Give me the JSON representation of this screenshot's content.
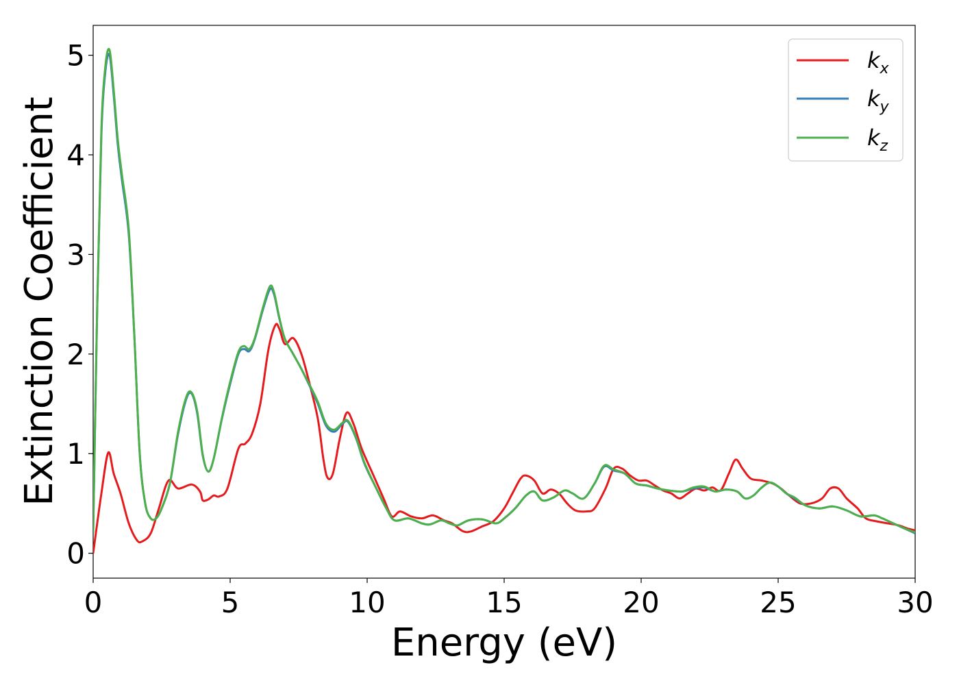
{
  "chart_data": {
    "type": "line",
    "xlabel": "Energy (eV)",
    "ylabel": "Extinction Coefficient",
    "xlim": [
      0,
      30
    ],
    "ylim": [
      -0.25,
      5.3
    ],
    "xticks": [
      0,
      5,
      10,
      15,
      20,
      25,
      30
    ],
    "yticks": [
      0,
      1,
      2,
      3,
      4,
      5
    ],
    "grid": false,
    "legend_position": "top-right",
    "series": [
      {
        "name": "k_x",
        "label_main": "k",
        "label_sub": "x",
        "color": "#e41a1c",
        "points": [
          [
            0,
            0
          ],
          [
            0.3,
            0.6
          ],
          [
            0.55,
            1.01
          ],
          [
            0.75,
            0.8
          ],
          [
            1.0,
            0.6
          ],
          [
            1.3,
            0.3
          ],
          [
            1.6,
            0.13
          ],
          [
            1.8,
            0.12
          ],
          [
            2.1,
            0.2
          ],
          [
            2.4,
            0.45
          ],
          [
            2.75,
            0.73
          ],
          [
            3.1,
            0.65
          ],
          [
            3.6,
            0.69
          ],
          [
            3.9,
            0.62
          ],
          [
            4.0,
            0.53
          ],
          [
            4.2,
            0.54
          ],
          [
            4.4,
            0.58
          ],
          [
            4.6,
            0.57
          ],
          [
            4.9,
            0.65
          ],
          [
            5.3,
            1.05
          ],
          [
            5.55,
            1.1
          ],
          [
            5.8,
            1.2
          ],
          [
            6.1,
            1.5
          ],
          [
            6.4,
            2.05
          ],
          [
            6.65,
            2.29
          ],
          [
            6.8,
            2.25
          ],
          [
            7.0,
            2.1
          ],
          [
            7.3,
            2.16
          ],
          [
            7.6,
            2.0
          ],
          [
            7.9,
            1.7
          ],
          [
            8.2,
            1.35
          ],
          [
            8.4,
            0.95
          ],
          [
            8.55,
            0.76
          ],
          [
            8.75,
            0.8
          ],
          [
            9.0,
            1.15
          ],
          [
            9.25,
            1.41
          ],
          [
            9.5,
            1.3
          ],
          [
            9.8,
            1.05
          ],
          [
            10.2,
            0.8
          ],
          [
            10.6,
            0.55
          ],
          [
            10.9,
            0.37
          ],
          [
            11.2,
            0.42
          ],
          [
            11.6,
            0.37
          ],
          [
            12.0,
            0.35
          ],
          [
            12.4,
            0.38
          ],
          [
            12.8,
            0.33
          ],
          [
            13.1,
            0.3
          ],
          [
            13.5,
            0.22
          ],
          [
            13.8,
            0.22
          ],
          [
            14.2,
            0.27
          ],
          [
            14.6,
            0.32
          ],
          [
            15.0,
            0.45
          ],
          [
            15.3,
            0.6
          ],
          [
            15.6,
            0.75
          ],
          [
            15.8,
            0.78
          ],
          [
            16.1,
            0.73
          ],
          [
            16.4,
            0.6
          ],
          [
            16.7,
            0.64
          ],
          [
            17.0,
            0.6
          ],
          [
            17.3,
            0.5
          ],
          [
            17.6,
            0.43
          ],
          [
            18.0,
            0.42
          ],
          [
            18.3,
            0.45
          ],
          [
            18.7,
            0.65
          ],
          [
            19.0,
            0.85
          ],
          [
            19.3,
            0.85
          ],
          [
            19.6,
            0.78
          ],
          [
            19.9,
            0.73
          ],
          [
            20.2,
            0.73
          ],
          [
            20.5,
            0.68
          ],
          [
            20.8,
            0.63
          ],
          [
            21.1,
            0.6
          ],
          [
            21.4,
            0.55
          ],
          [
            21.7,
            0.6
          ],
          [
            22.0,
            0.65
          ],
          [
            22.3,
            0.63
          ],
          [
            22.6,
            0.66
          ],
          [
            22.9,
            0.63
          ],
          [
            23.2,
            0.8
          ],
          [
            23.45,
            0.94
          ],
          [
            23.7,
            0.85
          ],
          [
            24.0,
            0.75
          ],
          [
            24.4,
            0.73
          ],
          [
            24.8,
            0.7
          ],
          [
            25.1,
            0.65
          ],
          [
            25.4,
            0.58
          ],
          [
            25.8,
            0.5
          ],
          [
            26.2,
            0.5
          ],
          [
            26.6,
            0.55
          ],
          [
            26.9,
            0.65
          ],
          [
            27.2,
            0.65
          ],
          [
            27.5,
            0.55
          ],
          [
            27.9,
            0.45
          ],
          [
            28.2,
            0.35
          ],
          [
            28.6,
            0.32
          ],
          [
            29.0,
            0.3
          ],
          [
            29.4,
            0.28
          ],
          [
            29.7,
            0.25
          ],
          [
            30.0,
            0.23
          ]
        ]
      },
      {
        "name": "k_y",
        "label_main": "k",
        "label_sub": "y",
        "color": "#377eb8",
        "points": [
          [
            0,
            0.2
          ],
          [
            0.15,
            2.5
          ],
          [
            0.3,
            4.2
          ],
          [
            0.45,
            4.85
          ],
          [
            0.6,
            5.0
          ],
          [
            0.75,
            4.6
          ],
          [
            0.9,
            4.1
          ],
          [
            1.05,
            3.75
          ],
          [
            1.3,
            3.2
          ],
          [
            1.5,
            2.2
          ],
          [
            1.7,
            1.0
          ],
          [
            1.9,
            0.5
          ],
          [
            2.1,
            0.35
          ],
          [
            2.3,
            0.35
          ],
          [
            2.5,
            0.45
          ],
          [
            2.8,
            0.7
          ],
          [
            3.1,
            1.2
          ],
          [
            3.4,
            1.55
          ],
          [
            3.6,
            1.6
          ],
          [
            3.8,
            1.4
          ],
          [
            4.0,
            0.98
          ],
          [
            4.2,
            0.82
          ],
          [
            4.4,
            0.95
          ],
          [
            4.7,
            1.35
          ],
          [
            5.0,
            1.7
          ],
          [
            5.3,
            2.0
          ],
          [
            5.5,
            2.05
          ],
          [
            5.7,
            2.03
          ],
          [
            5.9,
            2.15
          ],
          [
            6.2,
            2.45
          ],
          [
            6.45,
            2.65
          ],
          [
            6.6,
            2.6
          ],
          [
            6.8,
            2.35
          ],
          [
            7.0,
            2.15
          ],
          [
            7.3,
            2.0
          ],
          [
            7.6,
            1.85
          ],
          [
            7.9,
            1.68
          ],
          [
            8.2,
            1.5
          ],
          [
            8.5,
            1.28
          ],
          [
            8.8,
            1.22
          ],
          [
            9.1,
            1.3
          ],
          [
            9.3,
            1.32
          ],
          [
            9.6,
            1.15
          ],
          [
            9.9,
            0.9
          ],
          [
            10.3,
            0.67
          ],
          [
            10.7,
            0.45
          ],
          [
            11.0,
            0.33
          ],
          [
            11.5,
            0.35
          ],
          [
            12.0,
            0.3
          ],
          [
            12.3,
            0.29
          ],
          [
            12.7,
            0.33
          ],
          [
            13.0,
            0.3
          ],
          [
            13.3,
            0.28
          ],
          [
            13.7,
            0.33
          ],
          [
            14.2,
            0.34
          ],
          [
            14.7,
            0.3
          ],
          [
            15.0,
            0.35
          ],
          [
            15.4,
            0.45
          ],
          [
            15.8,
            0.58
          ],
          [
            16.1,
            0.62
          ],
          [
            16.4,
            0.53
          ],
          [
            16.8,
            0.56
          ],
          [
            17.2,
            0.63
          ],
          [
            17.5,
            0.6
          ],
          [
            17.9,
            0.55
          ],
          [
            18.3,
            0.7
          ],
          [
            18.65,
            0.87
          ],
          [
            19.0,
            0.83
          ],
          [
            19.4,
            0.8
          ],
          [
            19.8,
            0.7
          ],
          [
            20.2,
            0.68
          ],
          [
            20.6,
            0.65
          ],
          [
            21.0,
            0.63
          ],
          [
            21.5,
            0.62
          ],
          [
            21.9,
            0.65
          ],
          [
            22.3,
            0.66
          ],
          [
            22.7,
            0.62
          ],
          [
            23.1,
            0.64
          ],
          [
            23.5,
            0.62
          ],
          [
            23.8,
            0.55
          ],
          [
            24.1,
            0.58
          ],
          [
            24.4,
            0.66
          ],
          [
            24.7,
            0.71
          ],
          [
            25.0,
            0.67
          ],
          [
            25.3,
            0.6
          ],
          [
            25.6,
            0.55
          ],
          [
            26.0,
            0.48
          ],
          [
            26.5,
            0.45
          ],
          [
            27.0,
            0.47
          ],
          [
            27.5,
            0.43
          ],
          [
            28.0,
            0.37
          ],
          [
            28.5,
            0.38
          ],
          [
            28.8,
            0.35
          ],
          [
            29.2,
            0.3
          ],
          [
            29.6,
            0.25
          ],
          [
            30.0,
            0.2
          ]
        ]
      },
      {
        "name": "k_z",
        "label_main": "k",
        "label_sub": "z",
        "color": "#4daf4a",
        "points": [
          [
            0,
            0.2
          ],
          [
            0.15,
            2.5
          ],
          [
            0.3,
            4.25
          ],
          [
            0.45,
            4.9
          ],
          [
            0.6,
            5.05
          ],
          [
            0.75,
            4.65
          ],
          [
            0.9,
            4.15
          ],
          [
            1.05,
            3.8
          ],
          [
            1.3,
            3.25
          ],
          [
            1.5,
            2.2
          ],
          [
            1.7,
            1.0
          ],
          [
            1.9,
            0.5
          ],
          [
            2.1,
            0.35
          ],
          [
            2.3,
            0.35
          ],
          [
            2.5,
            0.45
          ],
          [
            2.8,
            0.7
          ],
          [
            3.1,
            1.22
          ],
          [
            3.4,
            1.57
          ],
          [
            3.6,
            1.61
          ],
          [
            3.8,
            1.42
          ],
          [
            4.0,
            0.99
          ],
          [
            4.2,
            0.82
          ],
          [
            4.4,
            0.95
          ],
          [
            4.7,
            1.36
          ],
          [
            5.0,
            1.72
          ],
          [
            5.3,
            2.02
          ],
          [
            5.5,
            2.08
          ],
          [
            5.7,
            2.05
          ],
          [
            5.9,
            2.16
          ],
          [
            6.2,
            2.47
          ],
          [
            6.45,
            2.68
          ],
          [
            6.6,
            2.62
          ],
          [
            6.8,
            2.36
          ],
          [
            7.0,
            2.15
          ],
          [
            7.3,
            2.0
          ],
          [
            7.6,
            1.85
          ],
          [
            7.9,
            1.69
          ],
          [
            8.2,
            1.52
          ],
          [
            8.5,
            1.3
          ],
          [
            8.8,
            1.24
          ],
          [
            9.1,
            1.31
          ],
          [
            9.3,
            1.33
          ],
          [
            9.6,
            1.16
          ],
          [
            9.9,
            0.91
          ],
          [
            10.3,
            0.67
          ],
          [
            10.7,
            0.45
          ],
          [
            11.0,
            0.33
          ],
          [
            11.5,
            0.35
          ],
          [
            12.0,
            0.3
          ],
          [
            12.3,
            0.29
          ],
          [
            12.7,
            0.33
          ],
          [
            13.0,
            0.3
          ],
          [
            13.3,
            0.28
          ],
          [
            13.7,
            0.33
          ],
          [
            14.2,
            0.34
          ],
          [
            14.7,
            0.3
          ],
          [
            15.0,
            0.35
          ],
          [
            15.4,
            0.45
          ],
          [
            15.8,
            0.58
          ],
          [
            16.1,
            0.62
          ],
          [
            16.4,
            0.53
          ],
          [
            16.8,
            0.56
          ],
          [
            17.2,
            0.63
          ],
          [
            17.5,
            0.6
          ],
          [
            17.9,
            0.55
          ],
          [
            18.3,
            0.7
          ],
          [
            18.65,
            0.88
          ],
          [
            19.0,
            0.84
          ],
          [
            19.4,
            0.8
          ],
          [
            19.8,
            0.7
          ],
          [
            20.2,
            0.68
          ],
          [
            20.6,
            0.65
          ],
          [
            21.0,
            0.63
          ],
          [
            21.5,
            0.62
          ],
          [
            21.9,
            0.66
          ],
          [
            22.3,
            0.67
          ],
          [
            22.7,
            0.62
          ],
          [
            23.1,
            0.64
          ],
          [
            23.5,
            0.62
          ],
          [
            23.8,
            0.55
          ],
          [
            24.1,
            0.58
          ],
          [
            24.4,
            0.66
          ],
          [
            24.7,
            0.71
          ],
          [
            25.0,
            0.67
          ],
          [
            25.3,
            0.6
          ],
          [
            25.6,
            0.56
          ],
          [
            26.0,
            0.48
          ],
          [
            26.5,
            0.45
          ],
          [
            27.0,
            0.47
          ],
          [
            27.5,
            0.43
          ],
          [
            28.0,
            0.37
          ],
          [
            28.5,
            0.38
          ],
          [
            28.8,
            0.35
          ],
          [
            29.2,
            0.3
          ],
          [
            29.6,
            0.25
          ],
          [
            30.0,
            0.21
          ]
        ]
      }
    ]
  }
}
